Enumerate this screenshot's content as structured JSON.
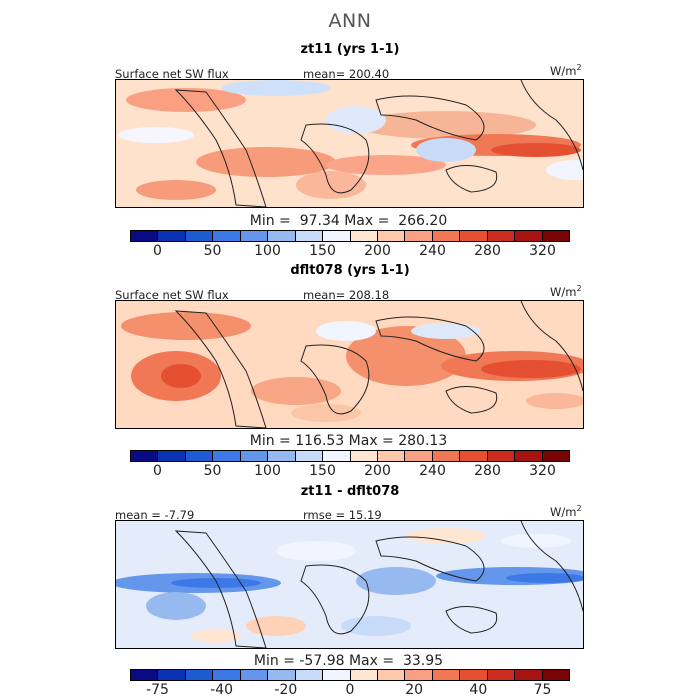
{
  "title": "ANN",
  "units_text": "W/m",
  "units_sup": "2",
  "panels": [
    {
      "title": "zt11 (yrs 1-1)",
      "left_label": "Surface net SW flux",
      "center_label": "mean= 200.40",
      "minmax": "Min =  97.34 Max =  266.20",
      "ticks": [
        "0",
        "50",
        "100",
        "150",
        "200",
        "240",
        "280",
        "320"
      ],
      "palette": [
        "#0a0a82",
        "#0a32b4",
        "#1e5ad2",
        "#3c78e6",
        "#6496eb",
        "#96b9f0",
        "#c8dcfa",
        "#f0f5ff",
        "#ffe6d2",
        "#ffc8aa",
        "#faa082",
        "#f07855",
        "#e65032",
        "#cd2d1e",
        "#a5140f",
        "#780505"
      ]
    },
    {
      "title": "dflt078 (yrs 1-1)",
      "left_label": "Surface net SW flux",
      "center_label": "mean= 208.18",
      "minmax": "Min = 116.53 Max = 280.13",
      "ticks": [
        "0",
        "50",
        "100",
        "150",
        "200",
        "240",
        "280",
        "320"
      ],
      "palette": [
        "#0a0a82",
        "#0a32b4",
        "#1e5ad2",
        "#3c78e6",
        "#6496eb",
        "#96b9f0",
        "#c8dcfa",
        "#f0f5ff",
        "#ffe6d2",
        "#ffc8aa",
        "#faa082",
        "#f07855",
        "#e65032",
        "#cd2d1e",
        "#a5140f",
        "#780505"
      ]
    },
    {
      "title": "zt11 - dflt078",
      "left_label": "mean =  -7.79",
      "center_label": "rmse =  15.19",
      "minmax": "Min = -57.98 Max =  33.95",
      "ticks": [
        "-75",
        "-40",
        "-20",
        "0",
        "20",
        "40",
        "75"
      ],
      "palette": [
        "#0a0a82",
        "#0a32b4",
        "#1e5ad2",
        "#3c78e6",
        "#6496eb",
        "#96b9f0",
        "#c8dcfa",
        "#f0f5ff",
        "#ffe6d2",
        "#ffc8aa",
        "#faa082",
        "#f07855",
        "#e65032",
        "#cd2d1e",
        "#a5140f",
        "#780505"
      ]
    }
  ],
  "chart_data": [
    {
      "type": "heatmap",
      "title": "zt11 (yrs 1-1)",
      "variable": "Surface net SW flux",
      "units": "W/m2",
      "mean": 200.4,
      "min": 97.34,
      "max": 266.2,
      "colorbar_levels": [
        0,
        50,
        100,
        150,
        200,
        240,
        280,
        320
      ]
    },
    {
      "type": "heatmap",
      "title": "dflt078 (yrs 1-1)",
      "variable": "Surface net SW flux",
      "units": "W/m2",
      "mean": 208.18,
      "min": 116.53,
      "max": 280.13,
      "colorbar_levels": [
        0,
        50,
        100,
        150,
        200,
        240,
        280,
        320
      ]
    },
    {
      "type": "heatmap",
      "title": "zt11 - dflt078",
      "units": "W/m2",
      "mean": -7.79,
      "rmse": 15.19,
      "min": -57.98,
      "max": 33.95,
      "colorbar_levels": [
        -75,
        -40,
        -20,
        0,
        20,
        40,
        75
      ]
    }
  ]
}
